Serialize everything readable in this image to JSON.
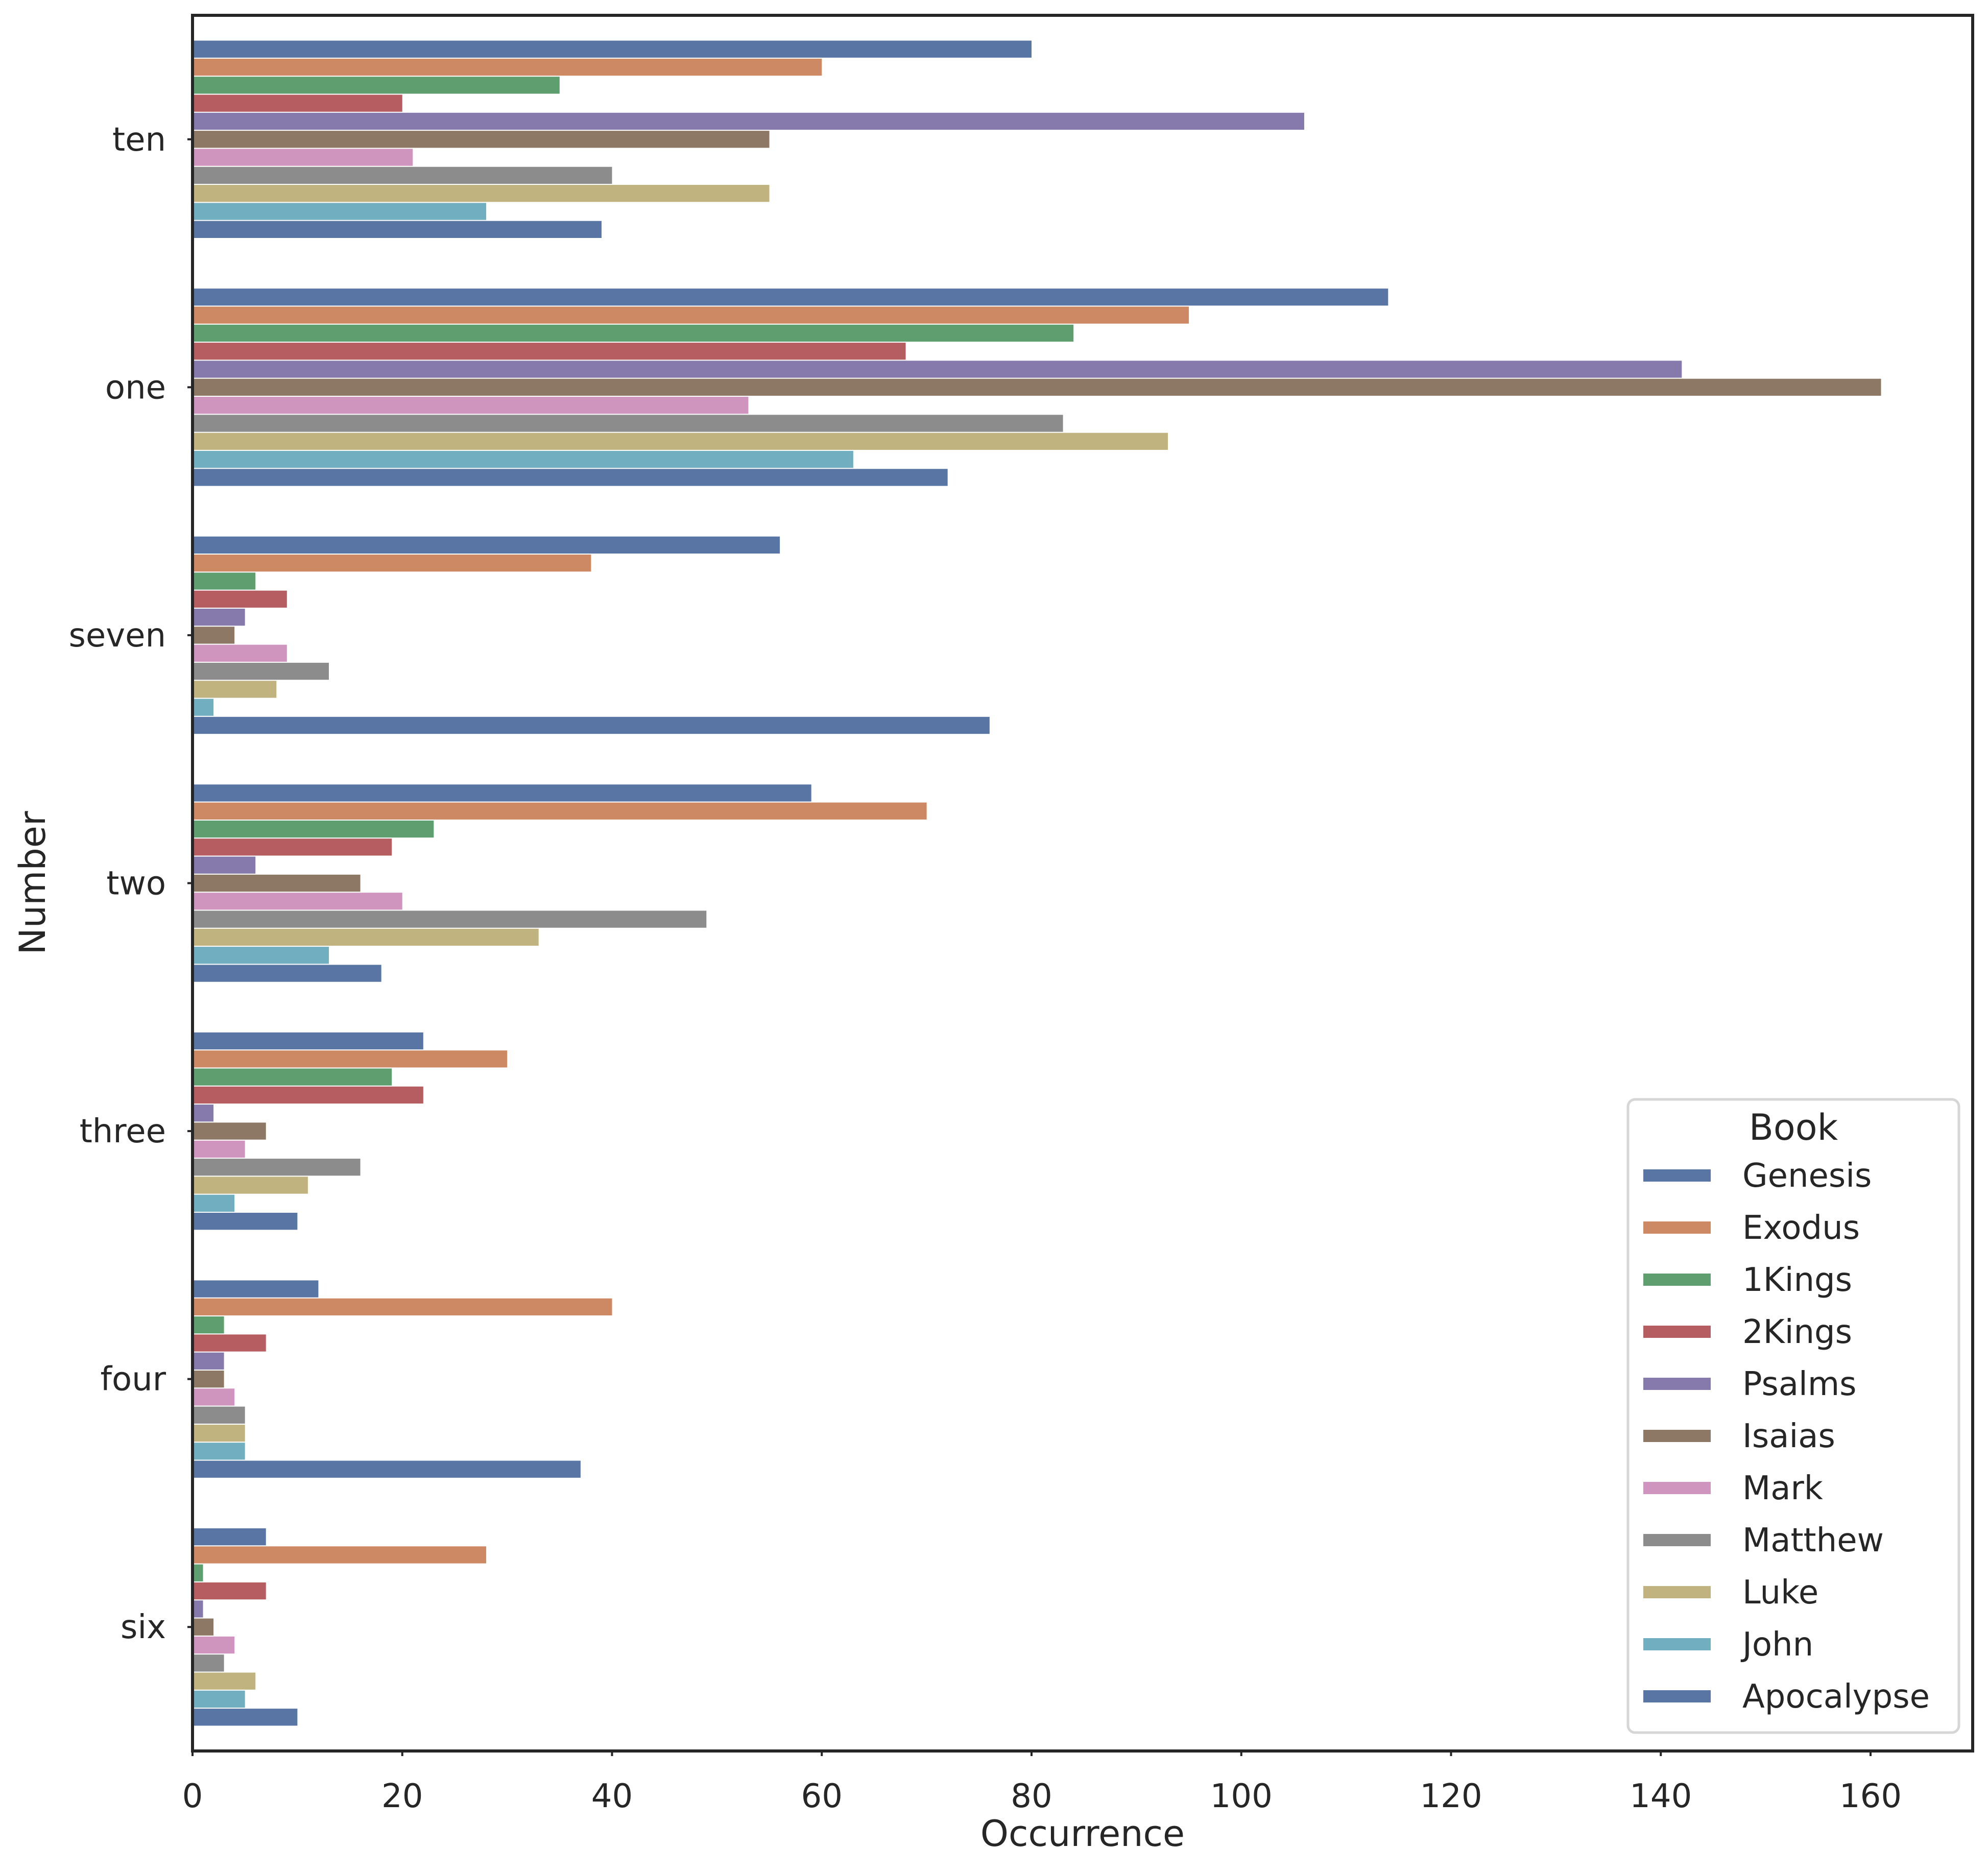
{
  "chart_data": {
    "type": "bar",
    "orientation": "horizontal",
    "title": "",
    "xlabel": "Occurrence",
    "ylabel": "Number",
    "xlim": [
      0,
      170
    ],
    "xticks": [
      0,
      20,
      40,
      60,
      80,
      100,
      120,
      140,
      160
    ],
    "grid": false,
    "categories": [
      "ten",
      "one",
      "seven",
      "two",
      "three",
      "four",
      "six"
    ],
    "legend": {
      "title": "Book",
      "placement": "lower-right"
    },
    "series": [
      {
        "name": "Genesis",
        "color": "#5875a4",
        "values": [
          80,
          114,
          56,
          59,
          22,
          12,
          7
        ]
      },
      {
        "name": "Exodus",
        "color": "#cc8963",
        "values": [
          60,
          95,
          38,
          70,
          30,
          40,
          28
        ]
      },
      {
        "name": "1Kings",
        "color": "#5f9e6e",
        "values": [
          35,
          84,
          6,
          23,
          19,
          3,
          1
        ]
      },
      {
        "name": "2Kings",
        "color": "#b55d60",
        "values": [
          20,
          68,
          9,
          19,
          22,
          7,
          7
        ]
      },
      {
        "name": "Psalms",
        "color": "#857aab",
        "values": [
          106,
          142,
          5,
          6,
          2,
          3,
          1
        ]
      },
      {
        "name": "Isaias",
        "color": "#8d7866",
        "values": [
          55,
          161,
          4,
          16,
          7,
          3,
          2
        ]
      },
      {
        "name": "Mark",
        "color": "#d095bf",
        "values": [
          21,
          53,
          9,
          20,
          5,
          4,
          4
        ]
      },
      {
        "name": "Matthew",
        "color": "#8c8c8c",
        "values": [
          40,
          83,
          13,
          49,
          16,
          5,
          3
        ]
      },
      {
        "name": "Luke",
        "color": "#c1b37f",
        "values": [
          55,
          93,
          8,
          33,
          11,
          5,
          6
        ]
      },
      {
        "name": "John",
        "color": "#71aec0",
        "values": [
          28,
          63,
          2,
          13,
          4,
          5,
          5
        ]
      },
      {
        "name": "Apocalypse",
        "color": "#5875a4",
        "values": [
          39,
          72,
          76,
          18,
          10,
          37,
          10
        ]
      }
    ]
  }
}
